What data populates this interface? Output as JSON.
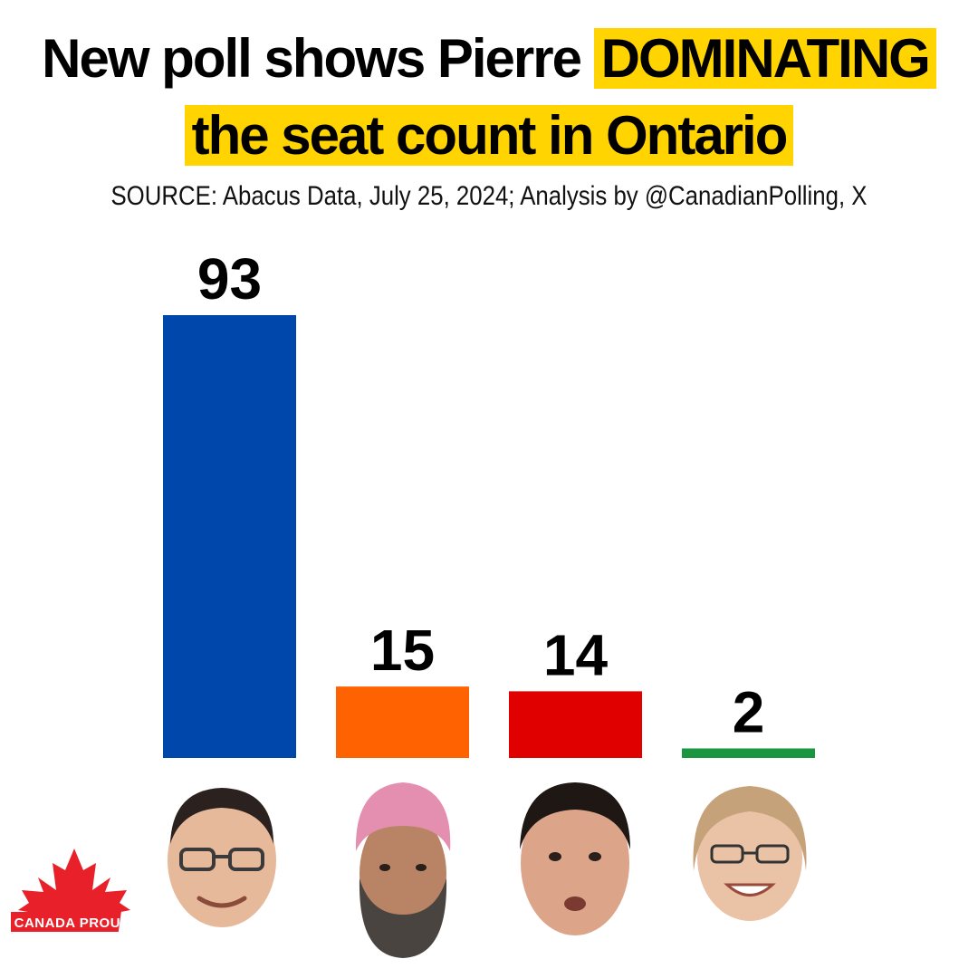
{
  "title": {
    "line1_plain": "New poll shows Pierre ",
    "line1_highlight": "DOMINATING",
    "line2_highlight": "the seat count in Ontario"
  },
  "source": "SOURCE: Abacus Data, July 25, 2024; Analysis by @CanadianPolling, X",
  "logo_text": "CANADA PROUD",
  "colors": {
    "highlight": "#ffd400",
    "cpc": "#0047ab",
    "ndp": "#ff6200",
    "lpc": "#e00000",
    "gpc": "#1a9641",
    "logo_red": "#e8202a"
  },
  "chart_data": {
    "type": "bar",
    "title": "New poll shows Pierre DOMINATING the seat count in Ontario",
    "categories": [
      "",
      "",
      "",
      ""
    ],
    "values": [
      93,
      15,
      14,
      2
    ],
    "value_labels": [
      "93",
      "15",
      "14",
      "2"
    ],
    "bar_colors": [
      "#0047ab",
      "#ff6200",
      "#e00000",
      "#1a9641"
    ],
    "category_images": [
      "face-icon",
      "face-turban-icon",
      "face-icon",
      "face-glasses-icon"
    ],
    "ylim": [
      0,
      93
    ],
    "grid": false,
    "legend": "none",
    "xlabel": "",
    "ylabel": ""
  }
}
